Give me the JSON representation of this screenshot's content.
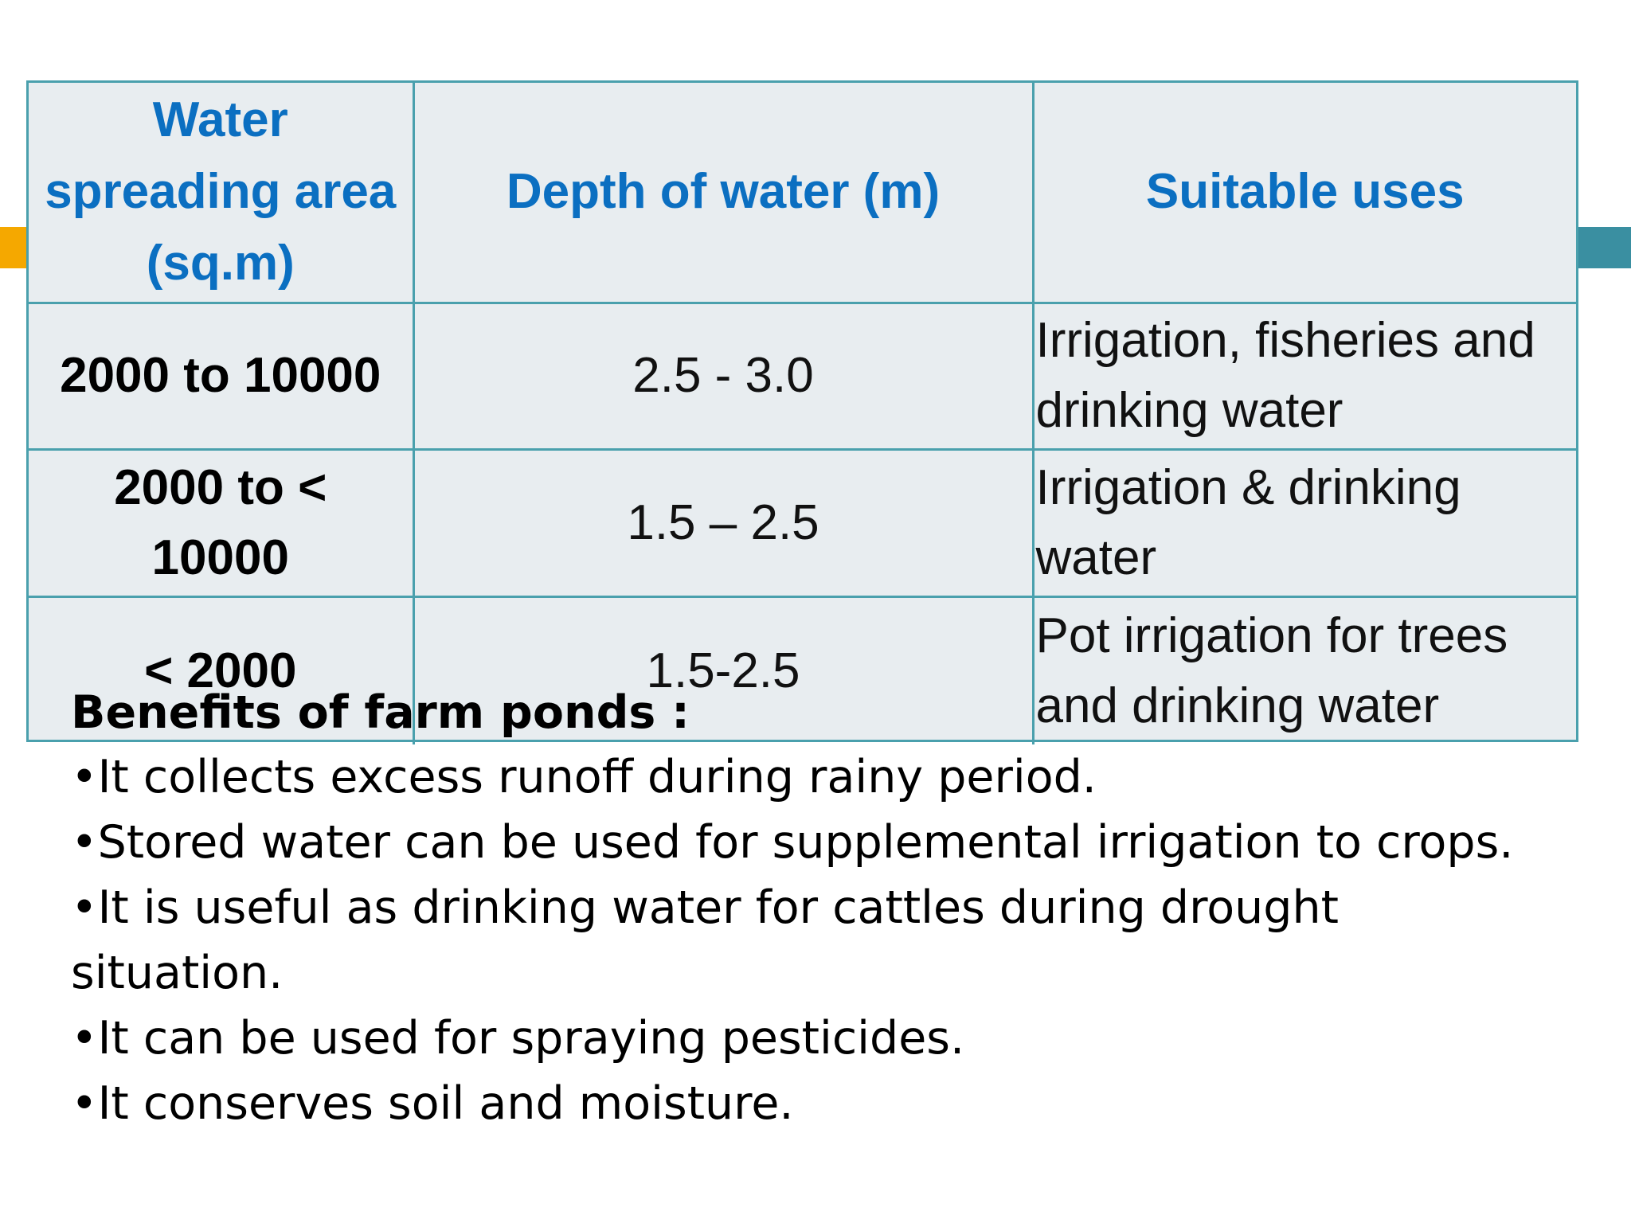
{
  "table": {
    "headers": [
      "Water spreading area (sq.m)",
      "Depth of water (m)",
      "Suitable uses"
    ],
    "header_lines": {
      "area": [
        "Water",
        "spreading area",
        "(sq.m)"
      ]
    },
    "rows": [
      {
        "area_lines": [
          "2000 to 10000"
        ],
        "depth": "2.5 - 3.0",
        "uses_lines": [
          "Irrigation, fisheries and",
          "drinking water"
        ]
      },
      {
        "area_lines": [
          "2000 to <",
          "10000"
        ],
        "depth": "1.5 – 2.5",
        "uses_lines": [
          "Irrigation & drinking",
          "water"
        ]
      },
      {
        "area_lines": [
          "< 2000"
        ],
        "depth": "1.5-2.5",
        "uses_lines": [
          "Pot irrigation for trees",
          "and drinking water"
        ]
      }
    ],
    "colors": {
      "header_text": "#0b6fc1",
      "border": "#4aa0ad",
      "cell_background": "#e8edf0"
    }
  },
  "benefits": {
    "title": "Benefits of farm ponds :",
    "bullet_symbol": "•",
    "items": [
      "It collects excess runoff during rainy period.",
      "Stored water can be used for supplemental irrigation to crops.",
      "It is useful as drinking water for cattles during drought",
      "It can be used for spraying pesticides.",
      "It conserves soil and moisture."
    ],
    "continuation": "situation."
  },
  "accents": {
    "left_color": "#f5a800",
    "right_color": "#3a8fa1"
  }
}
